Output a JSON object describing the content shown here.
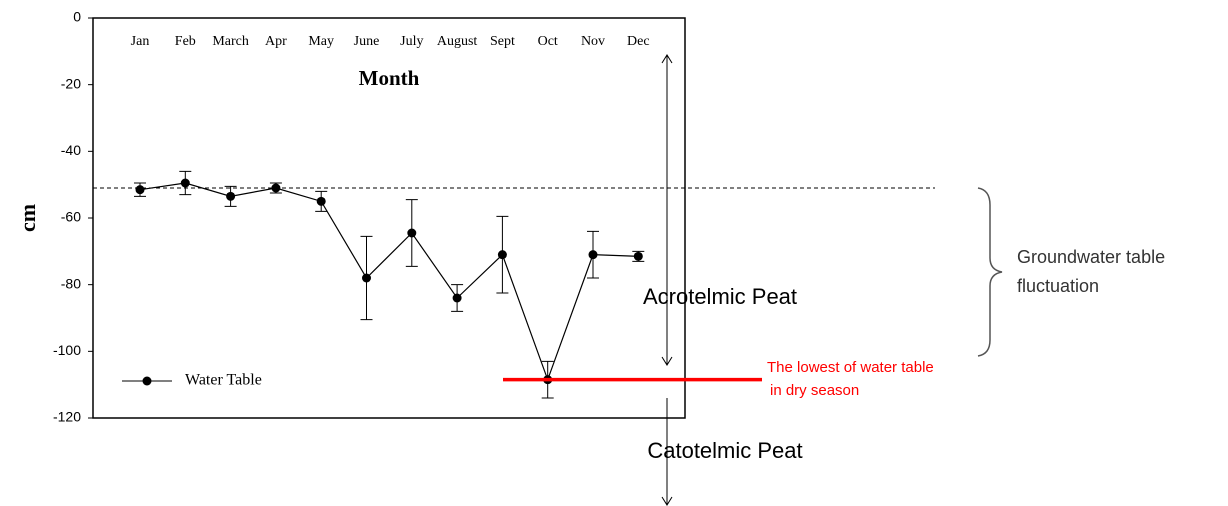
{
  "chart_data": {
    "type": "line",
    "x_label": "Month",
    "y_label": "cm",
    "categories": [
      "Jan",
      "Feb",
      "March",
      "Apr",
      "May",
      "June",
      "July",
      "August",
      "Sept",
      "Oct",
      "Nov",
      "Dec"
    ],
    "series": [
      {
        "name": "Water Table",
        "color": "#000000",
        "values": [
          -51.5,
          -49.5,
          -53.5,
          -51,
          -55,
          -78,
          -64.5,
          -84,
          -71,
          -108.5,
          -71,
          -71.5
        ],
        "errors": [
          2,
          3.5,
          3,
          1.5,
          3,
          12.5,
          10,
          4,
          11.5,
          5.5,
          7,
          1.5
        ]
      }
    ],
    "ylim": [
      -120,
      0
    ],
    "yticks": [
      0,
      -20,
      -40,
      -60,
      -80,
      -100,
      -120
    ],
    "reference_line": -51,
    "lowest_line": -108.5,
    "lowest_color": "#ff0000",
    "annotations": {
      "acrotelmic": "Acrotelmic Peat",
      "catotelmic": "Catotelmic Peat",
      "lowest": [
        "The lowest of water table",
        "in dry season"
      ],
      "fluctuation": [
        "Groundwater table",
        "fluctuation"
      ]
    }
  }
}
